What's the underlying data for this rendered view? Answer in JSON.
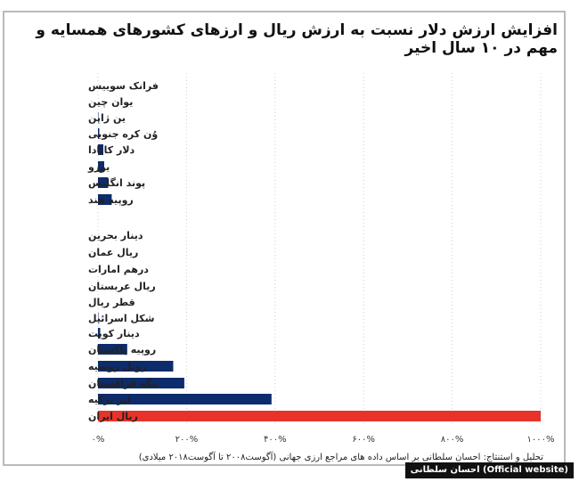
{
  "title": "افزایش ارزش دلار نسبت به ارزش ریال و ارزهای کشورهای همسایه و مهم در ۱۰ سال اخیر",
  "source_note": "تحلیل و استنتاج: احسان سلطانی بر اساس داده های مراجع ارزی جهانی (آگوست۲۰۰۸ تا آگوست۲۰۱۸ میلادی)",
  "brand_label": "احسان سلطانی (Official website)",
  "colors": {
    "primary": "#0d2c6c",
    "highlight": "#e8332a",
    "grid": "#cccccc"
  },
  "chart_data": {
    "type": "bar",
    "orientation": "horizontal",
    "categories": [
      "فرانک سوییس",
      "یوان چین",
      "ین ژاپن",
      "وُن کره جنوبی",
      "دلار کانادا",
      "یورو",
      "پوند انگلیس",
      "روپیه هند",
      "دینار بحرین",
      "ریال عمان",
      "درهم امارات",
      "ریال عربستان",
      "قطر ریال",
      "شکل اسرائیل",
      "دینار کویت",
      "روپیه پاکستان",
      "روبل روسیه",
      "تنگه قزاقستان",
      "لیر ترکیه",
      "ریال ایران"
    ],
    "groups": [
      [
        0,
        7
      ],
      [
        8,
        19
      ]
    ],
    "values": [
      0,
      0,
      1,
      3,
      12,
      14,
      23,
      31,
      0,
      0,
      0,
      0,
      0,
      1,
      5,
      66,
      170,
      195,
      392,
      1000
    ],
    "highlight_index": 19,
    "xlim": [
      0,
      1000
    ],
    "xticks": [
      0,
      200,
      400,
      600,
      800,
      1000
    ],
    "xtick_labels": [
      "۰%",
      "۲۰۰%",
      "۴۰۰%",
      "۶۰۰%",
      "۸۰۰%",
      "۱۰۰۰%"
    ],
    "grid": true
  }
}
